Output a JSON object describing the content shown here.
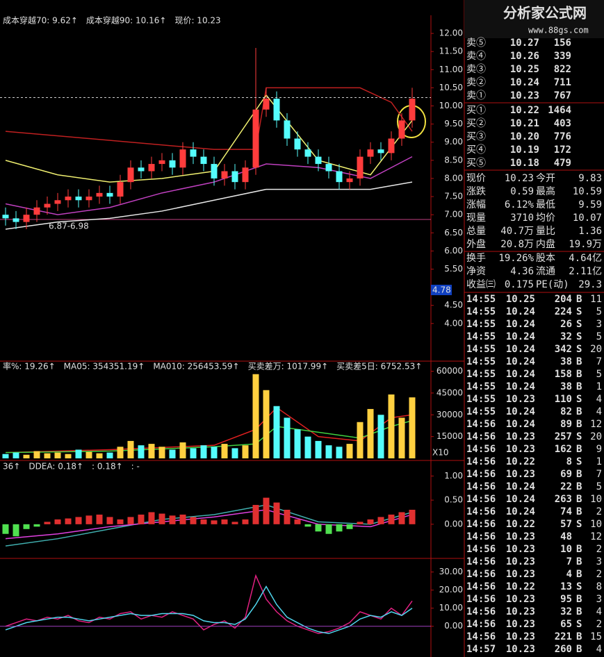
{
  "main": {
    "header": [
      {
        "text": "成本穿越70: 9.62↑",
        "color": "#e0e0e0"
      },
      {
        "text": "成本穿越90: 10.16↑",
        "color": "#ff4040"
      },
      {
        "text": "现价: 10.23",
        "color": "#e0e0e0"
      }
    ],
    "ylim": [
      3,
      12.5
    ],
    "yticks": [
      {
        "value": 12,
        "label": "12.00"
      },
      {
        "value": 11.5,
        "label": "11.50"
      },
      {
        "value": 11,
        "label": "11.00"
      },
      {
        "value": 10.5,
        "label": "10.50"
      },
      {
        "value": 10,
        "label": "10.00"
      },
      {
        "value": 9.5,
        "label": "9.50"
      },
      {
        "value": 9,
        "label": "9.00"
      },
      {
        "value": 8.5,
        "label": "8.50"
      },
      {
        "value": 8,
        "label": "8.00"
      },
      {
        "value": 7.5,
        "label": "7.50"
      },
      {
        "value": 7,
        "label": "7.00"
      },
      {
        "value": 6.5,
        "label": "6.50"
      },
      {
        "value": 6,
        "label": "6.00"
      },
      {
        "value": 5.5,
        "label": "5.50"
      },
      {
        "value": 4.5,
        "label": "4.50"
      },
      {
        "value": 4,
        "label": "4.00"
      }
    ],
    "axis_marker": "4.78",
    "range_label": "6.87-6.98",
    "price_line": 10.23,
    "up_color": "#ff3c3c",
    "down_color": "#54fcfc",
    "candles": {
      "open": [
        7.0,
        6.9,
        6.8,
        7.0,
        7.2,
        7.3,
        7.4,
        7.5,
        7.4,
        7.5,
        7.6,
        7.5,
        7.9,
        8.3,
        8.2,
        8.4,
        8.5,
        8.3,
        8.8,
        8.6,
        8.4,
        8.0,
        8.2,
        7.9,
        8.3,
        9.9,
        10.2,
        9.6,
        9.1,
        8.8,
        8.6,
        8.4,
        8.2,
        7.9,
        8.0,
        8.6,
        8.8,
        8.7,
        9.1,
        9.6
      ],
      "high": [
        7.2,
        7.1,
        7.2,
        7.4,
        7.5,
        7.6,
        7.7,
        7.7,
        7.7,
        7.8,
        7.8,
        8.1,
        8.5,
        8.5,
        8.6,
        8.7,
        8.7,
        9.0,
        9.0,
        8.8,
        8.6,
        8.4,
        8.4,
        8.5,
        11.6,
        10.5,
        10.4,
        9.8,
        9.3,
        9.0,
        8.8,
        8.6,
        8.4,
        8.2,
        8.8,
        9.0,
        9.0,
        9.3,
        9.8,
        10.5
      ],
      "low": [
        6.7,
        6.6,
        6.6,
        6.8,
        7.0,
        7.1,
        7.2,
        7.2,
        7.2,
        7.3,
        7.3,
        7.3,
        7.7,
        8.0,
        8.0,
        8.2,
        8.1,
        8.1,
        8.4,
        8.2,
        7.8,
        7.8,
        7.7,
        7.7,
        8.1,
        9.7,
        9.4,
        8.9,
        8.6,
        8.4,
        8.2,
        8.0,
        7.7,
        7.7,
        7.8,
        8.4,
        8.5,
        8.5,
        8.9,
        9.4
      ],
      "close": [
        6.9,
        6.8,
        7.0,
        7.2,
        7.3,
        7.4,
        7.5,
        7.4,
        7.5,
        7.6,
        7.5,
        7.9,
        8.3,
        8.2,
        8.4,
        8.5,
        8.3,
        8.8,
        8.6,
        8.4,
        8.0,
        8.2,
        7.9,
        8.3,
        9.9,
        10.2,
        9.6,
        9.1,
        8.8,
        8.6,
        8.4,
        8.2,
        7.9,
        8.0,
        8.6,
        8.8,
        8.7,
        9.1,
        9.6,
        10.2
      ]
    },
    "lines": [
      {
        "color": "#c02020",
        "x": [
          0,
          20,
          24,
          25,
          34,
          37,
          39
        ],
        "values": [
          9.3,
          8.8,
          8.8,
          10.5,
          10.5,
          10.1,
          9.3
        ]
      },
      {
        "color": "#f0f070",
        "x": [
          0,
          5,
          10,
          15,
          20,
          25,
          30,
          35,
          39
        ],
        "values": [
          8.5,
          8.1,
          7.9,
          8.0,
          8.2,
          10.3,
          8.5,
          8.1,
          9.6
        ]
      },
      {
        "color": "#c040c0",
        "x": [
          0,
          5,
          10,
          15,
          20,
          25,
          30,
          35,
          39
        ],
        "values": [
          7.3,
          7.0,
          7.2,
          7.6,
          7.9,
          8.4,
          8.3,
          8.0,
          8.6
        ]
      },
      {
        "color": "#e8e8e8",
        "x": [
          0,
          5,
          10,
          15,
          20,
          25,
          30,
          35,
          39
        ],
        "values": [
          6.6,
          6.8,
          6.9,
          7.1,
          7.4,
          7.7,
          7.7,
          7.7,
          7.9
        ]
      }
    ]
  },
  "volume": {
    "header": [
      {
        "text": "率%: 19.26↑",
        "color": "#e0e0e0"
      },
      {
        "text": "MA05: 354351.19↑",
        "color": "#ff4040"
      },
      {
        "text": "MA010: 256453.59↑",
        "color": "#40e040"
      },
      {
        "text": "买卖差万: 1017.99↑",
        "color": "#ffff40"
      },
      {
        "text": "买卖差5日: 6752.53↑",
        "color": "#ff4040"
      }
    ],
    "ylim": [
      0,
      66000
    ],
    "yticks": [
      15000,
      30000,
      45000,
      60000
    ],
    "unit_label": "X10",
    "up_color": "#ffd040",
    "down_color": "#54fcfc",
    "values": [
      3000,
      4000,
      2500,
      5000,
      3500,
      4000,
      3000,
      6000,
      4500,
      3500,
      4000,
      8000,
      12000,
      9000,
      10000,
      8000,
      6000,
      11000,
      7000,
      9000,
      8000,
      10000,
      7000,
      9000,
      58000,
      47000,
      36000,
      28000,
      20000,
      15000,
      12000,
      9000,
      8000,
      10000,
      25000,
      34000,
      30000,
      44000,
      28000,
      42000
    ],
    "lines": [
      {
        "color": "#e02020",
        "x": [
          0,
          10,
          20,
          24,
          26,
          30,
          34,
          37,
          39
        ],
        "values": [
          4000,
          6000,
          9000,
          20000,
          35000,
          15000,
          12000,
          28000,
          30000
        ]
      },
      {
        "color": "#40d040",
        "x": [
          0,
          10,
          20,
          24,
          26,
          30,
          34,
          37,
          39
        ],
        "values": [
          4000,
          5000,
          8000,
          10000,
          22000,
          18000,
          14000,
          22000,
          26000
        ]
      }
    ]
  },
  "dde": {
    "header": [
      {
        "text": "36↑",
        "color": "#ff4040"
      },
      {
        "text": "DDEA: 0.18↑",
        "color": "#40c0c0"
      },
      {
        "text": ": 0.18↑",
        "color": "#ff40ff"
      },
      {
        "text": ": -",
        "color": "#e0e0e0"
      }
    ],
    "ylim": [
      -0.65,
      1.25
    ],
    "yticks": [
      {
        "value": 1,
        "label": "1.00"
      },
      {
        "value": 0.5,
        "label": "0.50"
      },
      {
        "value": 0,
        "label": "0.00"
      }
    ],
    "up_color": "#e03030",
    "down_color": "#50e050",
    "values": [
      -0.2,
      -0.25,
      -0.1,
      -0.05,
      0.05,
      0.1,
      0.12,
      0.15,
      0.18,
      0.2,
      0.15,
      0.1,
      0.15,
      0.2,
      0.25,
      0.22,
      0.18,
      0.2,
      0.15,
      0.1,
      0.08,
      0.1,
      0.05,
      0.1,
      0.4,
      0.55,
      0.45,
      0.3,
      0.1,
      -0.05,
      -0.15,
      -0.2,
      -0.15,
      -0.1,
      0.05,
      0.1,
      0.15,
      0.2,
      0.25,
      0.3
    ],
    "lines": [
      {
        "color": "#40b0b0",
        "x": [
          0,
          5,
          10,
          15,
          20,
          25,
          30,
          35,
          39
        ],
        "values": [
          -0.45,
          -0.3,
          -0.1,
          0.1,
          0.2,
          0.4,
          0.05,
          0.0,
          0.25
        ]
      },
      {
        "color": "#e040e0",
        "x": [
          0,
          5,
          10,
          15,
          20,
          25,
          30,
          35,
          39
        ],
        "values": [
          -0.3,
          -0.2,
          -0.05,
          0.05,
          0.15,
          0.3,
          0.0,
          -0.05,
          0.2
        ]
      }
    ]
  },
  "osc": {
    "ylim": [
      -17,
      36
    ],
    "yticks": [
      {
        "value": 30,
        "label": "30.00"
      },
      {
        "value": 20,
        "label": "20.00"
      },
      {
        "value": 10,
        "label": "10.00"
      },
      {
        "value": 0,
        "label": "0.00"
      }
    ],
    "lines": [
      {
        "color": "#e02080",
        "x": [
          0,
          1,
          2,
          3,
          4,
          5,
          6,
          7,
          8,
          9,
          10,
          11,
          12,
          13,
          14,
          15,
          16,
          17,
          18,
          19,
          20,
          21,
          22,
          23,
          24,
          25,
          26,
          27,
          28,
          29,
          30,
          31,
          32,
          33,
          34,
          35,
          36,
          37,
          38,
          39
        ],
        "values": [
          0,
          2,
          4,
          3,
          5,
          4,
          6,
          3,
          2,
          5,
          4,
          7,
          8,
          4,
          6,
          5,
          8,
          6,
          4,
          -2,
          1,
          3,
          -1,
          5,
          28,
          15,
          8,
          3,
          0,
          -2,
          -4,
          -3,
          -1,
          2,
          8,
          6,
          4,
          10,
          6,
          14
        ]
      },
      {
        "color": "#50d8f0",
        "x": [
          0,
          1,
          2,
          3,
          4,
          5,
          6,
          7,
          8,
          9,
          10,
          11,
          12,
          13,
          14,
          15,
          16,
          17,
          18,
          19,
          20,
          21,
          22,
          23,
          24,
          25,
          26,
          27,
          28,
          29,
          30,
          31,
          32,
          33,
          34,
          35,
          36,
          37,
          38,
          39
        ],
        "values": [
          -2,
          0,
          2,
          3,
          4,
          5,
          5,
          4,
          3,
          4,
          5,
          6,
          7,
          6,
          6,
          7,
          7,
          7,
          6,
          3,
          2,
          2,
          1,
          4,
          12,
          22,
          12,
          5,
          2,
          -1,
          -3,
          -4,
          -2,
          0,
          4,
          6,
          5,
          8,
          6,
          10
        ]
      }
    ]
  },
  "quote": {
    "logo": "分析家公式网",
    "logo_url": "www.88gs.com",
    "book": [
      {
        "label": "卖⑤",
        "price": "10.27",
        "volume": "156"
      },
      {
        "label": "卖④",
        "price": "10.26",
        "volume": "339"
      },
      {
        "label": "卖③",
        "price": "10.25",
        "volume": "822"
      },
      {
        "label": "卖②",
        "price": "10.24",
        "volume": "711"
      },
      {
        "label": "卖①",
        "price": "10.23",
        "volume": "767"
      },
      {
        "label": "买①",
        "price": "10.22",
        "volume": "1464"
      },
      {
        "label": "买②",
        "price": "10.21",
        "volume": "403"
      },
      {
        "label": "买③",
        "price": "10.20",
        "volume": "776"
      },
      {
        "label": "买④",
        "price": "10.19",
        "volume": "172"
      },
      {
        "label": "买⑤",
        "price": "10.18",
        "volume": "479"
      }
    ],
    "stats": [
      [
        {
          "label": "现价",
          "value": "10.23",
          "color": "#ff4040"
        },
        {
          "label": "今开",
          "value": "9.83",
          "color": "#ff4040"
        }
      ],
      [
        {
          "label": "涨跌",
          "value": "0.59",
          "color": "#ff4040"
        },
        {
          "label": "最高",
          "value": "10.59",
          "color": "#ff4040"
        }
      ],
      [
        {
          "label": "涨幅",
          "value": "6.12%",
          "color": "#ff4040"
        },
        {
          "label": "最低",
          "value": "9.59",
          "color": "#40e040"
        }
      ],
      [
        {
          "label": "现量",
          "value": "3710",
          "color": "#e040e0"
        },
        {
          "label": "均价",
          "value": "10.07",
          "color": "#ff4040"
        }
      ],
      [
        {
          "label": "总量",
          "value": "40.7万",
          "color": "#ffff40"
        },
        {
          "label": "量比",
          "value": "1.36",
          "color": "#ff4040"
        }
      ],
      [
        {
          "label": "外盘",
          "value": "20.8万",
          "color": "#ff4040"
        },
        {
          "label": "内盘",
          "value": "19.9万",
          "color": "#40e040"
        }
      ],
      [
        {
          "label": "换手",
          "value": "19.26%",
          "color": "#e0e0e0"
        },
        {
          "label": "股本",
          "value": "4.64亿",
          "color": "#e0e0e0"
        }
      ],
      [
        {
          "label": "净资",
          "value": "4.36",
          "color": "#e0e0e0"
        },
        {
          "label": "流通",
          "value": "2.11亿",
          "color": "#e0e0e0"
        }
      ],
      [
        {
          "label": "收益㈢",
          "value": "0.175",
          "color": "#e0e0e0"
        },
        {
          "label": "PE(动)",
          "value": "29.3",
          "color": "#e0e0e0"
        }
      ]
    ],
    "trades": [
      {
        "time": "14:55",
        "price": "10.25",
        "volume": "204",
        "side": "B",
        "count": "11"
      },
      {
        "time": "14:55",
        "price": "10.24",
        "volume": "224",
        "side": "S",
        "count": "5"
      },
      {
        "time": "14:55",
        "price": "10.24",
        "volume": "26",
        "side": "S",
        "count": "3"
      },
      {
        "time": "14:55",
        "price": "10.24",
        "volume": "32",
        "side": "S",
        "count": "5"
      },
      {
        "time": "14:55",
        "price": "10.24",
        "volume": "342",
        "side": "S",
        "count": "20"
      },
      {
        "time": "14:55",
        "price": "10.24",
        "volume": "38",
        "side": "B",
        "count": "7"
      },
      {
        "time": "14:55",
        "price": "10.24",
        "volume": "158",
        "side": "B",
        "count": "5"
      },
      {
        "time": "14:55",
        "price": "10.24",
        "volume": "38",
        "side": "B",
        "count": "1"
      },
      {
        "time": "14:55",
        "price": "10.23",
        "volume": "110",
        "side": "S",
        "count": "4"
      },
      {
        "time": "14:55",
        "price": "10.24",
        "volume": "82",
        "side": "B",
        "count": "4"
      },
      {
        "time": "14:56",
        "price": "10.24",
        "volume": "89",
        "side": "B",
        "count": "12"
      },
      {
        "time": "14:56",
        "price": "10.23",
        "volume": "257",
        "side": "S",
        "count": "20"
      },
      {
        "time": "14:56",
        "price": "10.23",
        "volume": "162",
        "side": "B",
        "count": "9"
      },
      {
        "time": "14:56",
        "price": "10.22",
        "volume": "8",
        "side": "S",
        "count": "1"
      },
      {
        "time": "14:56",
        "price": "10.23",
        "volume": "69",
        "side": "B",
        "count": "7"
      },
      {
        "time": "14:56",
        "price": "10.24",
        "volume": "22",
        "side": "B",
        "count": "5"
      },
      {
        "time": "14:56",
        "price": "10.24",
        "volume": "263",
        "side": "B",
        "count": "10"
      },
      {
        "time": "14:56",
        "price": "10.24",
        "volume": "74",
        "side": "B",
        "count": "2"
      },
      {
        "time": "14:56",
        "price": "10.22",
        "volume": "57",
        "side": "S",
        "count": "10"
      },
      {
        "time": "14:56",
        "price": "10.23",
        "volume": "48",
        "count": "12"
      },
      {
        "time": "14:56",
        "price": "10.23",
        "volume": "10",
        "side": "B",
        "count": "2"
      },
      {
        "time": "14:56",
        "price": "10.23",
        "volume": "7",
        "side": "B",
        "count": "3"
      },
      {
        "time": "14:56",
        "price": "10.23",
        "volume": "4",
        "side": "B",
        "count": "2"
      },
      {
        "time": "14:56",
        "price": "10.22",
        "volume": "13",
        "side": "S",
        "count": "8"
      },
      {
        "time": "14:56",
        "price": "10.23",
        "volume": "95",
        "side": "B",
        "count": "3"
      },
      {
        "time": "14:56",
        "price": "10.23",
        "volume": "32",
        "side": "B",
        "count": "4"
      },
      {
        "time": "14:56",
        "price": "10.23",
        "volume": "65",
        "side": "S",
        "count": "2"
      },
      {
        "time": "14:56",
        "price": "10.23",
        "volume": "221",
        "side": "B",
        "count": "15"
      },
      {
        "time": "14:57",
        "price": "10.23",
        "volume": "260",
        "side": "B",
        "count": "4"
      }
    ]
  }
}
